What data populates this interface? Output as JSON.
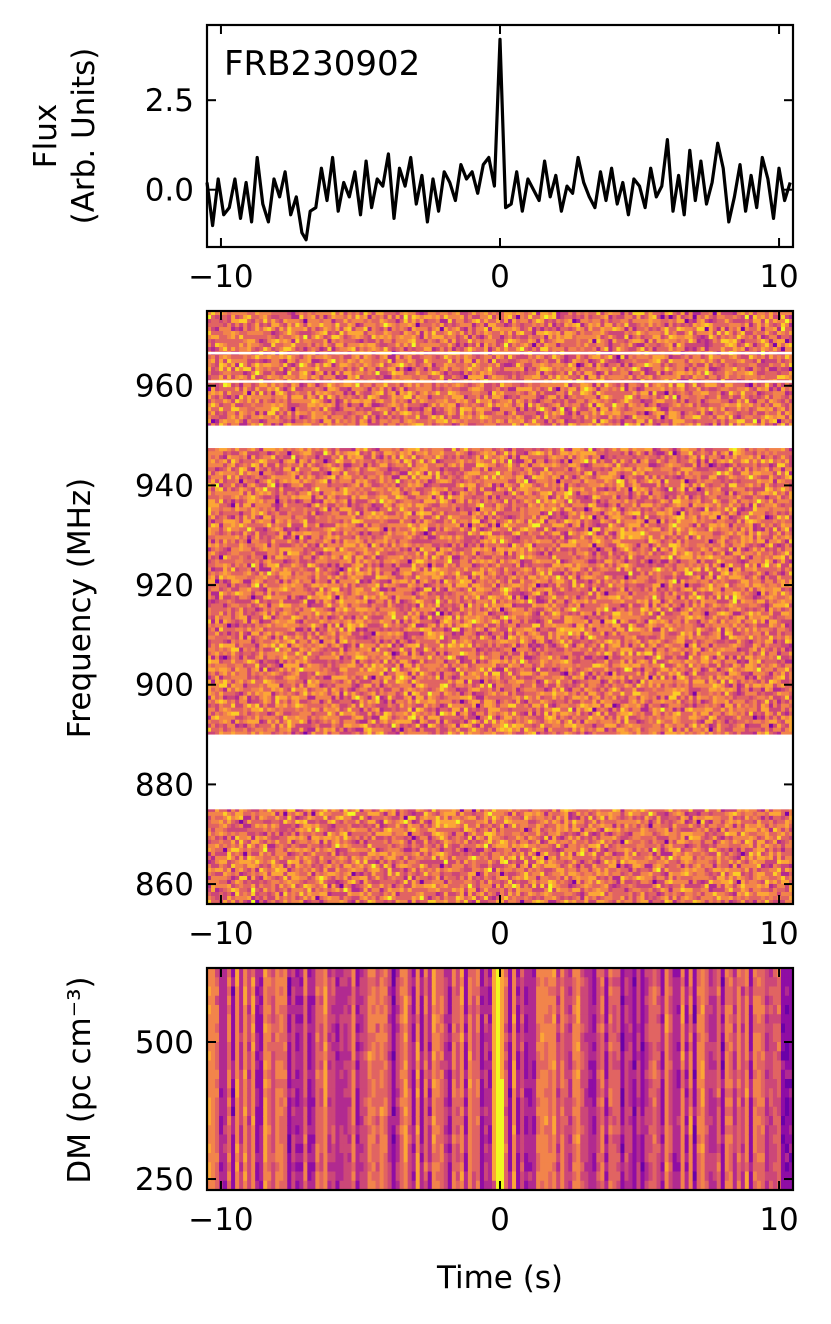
{
  "chart_data": [
    {
      "type": "line",
      "annotation": "FRB230902",
      "ylabel_lines": [
        "Flux",
        "(Arb. Units)"
      ],
      "xlabel": "",
      "xlim": [
        -10.5,
        10.5
      ],
      "ylim": [
        -1.6,
        4.6
      ],
      "xticks": [
        -10,
        0,
        10
      ],
      "xtick_labels": [
        "−10",
        "0",
        "10"
      ],
      "yticks": [
        0.0,
        2.5
      ],
      "ytick_labels": [
        "0.0",
        "2.5"
      ],
      "series": [
        {
          "color": "#000000",
          "x": [
            -10.5,
            -10.3,
            -10.1,
            -9.9,
            -9.7,
            -9.5,
            -9.3,
            -9.1,
            -8.9,
            -8.7,
            -8.5,
            -8.3,
            -8.1,
            -7.9,
            -7.7,
            -7.5,
            -7.3,
            -7.1,
            -6.95,
            -6.8,
            -6.6,
            -6.4,
            -6.2,
            -6.0,
            -5.8,
            -5.6,
            -5.4,
            -5.2,
            -5.0,
            -4.8,
            -4.6,
            -4.4,
            -4.2,
            -4.0,
            -3.8,
            -3.6,
            -3.4,
            -3.2,
            -3.0,
            -2.8,
            -2.6,
            -2.4,
            -2.2,
            -2.0,
            -1.8,
            -1.6,
            -1.4,
            -1.2,
            -1.0,
            -0.8,
            -0.6,
            -0.4,
            -0.2,
            0.0,
            0.2,
            0.4,
            0.6,
            0.8,
            1.0,
            1.2,
            1.4,
            1.6,
            1.8,
            2.0,
            2.2,
            2.4,
            2.6,
            2.8,
            3.0,
            3.2,
            3.4,
            3.6,
            3.8,
            4.0,
            4.2,
            4.4,
            4.6,
            4.8,
            5.0,
            5.2,
            5.4,
            5.6,
            5.8,
            6.0,
            6.2,
            6.4,
            6.6,
            6.8,
            7.0,
            7.2,
            7.4,
            7.6,
            7.8,
            8.0,
            8.2,
            8.4,
            8.6,
            8.8,
            9.0,
            9.2,
            9.4,
            9.6,
            9.8,
            10.0,
            10.2,
            10.4
          ],
          "y": [
            0.2,
            -1.0,
            0.3,
            -0.7,
            -0.5,
            0.3,
            -0.8,
            0.2,
            -0.9,
            0.9,
            -0.4,
            -0.9,
            0.3,
            -0.2,
            0.5,
            -0.7,
            -0.2,
            -1.2,
            -1.4,
            -0.6,
            -0.5,
            0.6,
            -0.3,
            0.9,
            -0.6,
            0.2,
            -0.2,
            0.5,
            -0.7,
            0.8,
            -0.5,
            0.3,
            0.1,
            1.0,
            -0.8,
            0.6,
            0.1,
            0.9,
            -0.4,
            0.4,
            -0.9,
            0.3,
            -0.6,
            0.5,
            0.2,
            -0.3,
            0.7,
            0.3,
            0.5,
            -0.1,
            0.7,
            0.9,
            0.1,
            4.2,
            -0.5,
            -0.4,
            0.5,
            -0.6,
            0.3,
            0.0,
            -0.3,
            0.8,
            -0.2,
            0.4,
            -0.6,
            0.1,
            -0.1,
            0.9,
            0.2,
            -0.2,
            -0.5,
            0.5,
            -0.3,
            0.6,
            -0.4,
            0.2,
            -0.7,
            0.3,
            0.1,
            -0.5,
            0.6,
            -0.2,
            0.1,
            1.4,
            -0.6,
            0.4,
            -0.7,
            1.1,
            -0.3,
            0.8,
            -0.4,
            0.2,
            1.3,
            0.6,
            -0.9,
            -0.2,
            0.7,
            -0.6,
            0.4,
            -0.5,
            0.9,
            0.3,
            -0.8,
            0.6,
            -0.3,
            0.2
          ]
        }
      ]
    },
    {
      "type": "heatmap",
      "ylabel": "Frequency (MHz)",
      "xlabel": "",
      "colormap": "plasma",
      "xlim": [
        -10.5,
        10.5
      ],
      "ylim": [
        856,
        975
      ],
      "xticks": [
        -10,
        0,
        10
      ],
      "xtick_labels": [
        "−10",
        "0",
        "10"
      ],
      "yticks": [
        860,
        880,
        900,
        920,
        940,
        960
      ],
      "ytick_labels": [
        "860",
        "880",
        "900",
        "920",
        "940",
        "960"
      ],
      "masked_bands_mhz": [
        [
          875,
          890
        ],
        [
          947.5,
          952
        ],
        [
          966.3,
          966.8
        ],
        [
          960.6,
          961.1
        ]
      ],
      "colors": [
        "#7e03a8",
        "#b12a90",
        "#cc4778",
        "#e16462",
        "#f2844b",
        "#fca636",
        "#fcce25",
        "#f0f921"
      ]
    },
    {
      "type": "heatmap",
      "ylabel": "DM (pc cm⁻³)",
      "xlabel": "Time (s)",
      "colormap": "plasma",
      "xlim": [
        -10.5,
        10.5
      ],
      "ylim": [
        230,
        635
      ],
      "xticks": [
        -10,
        0,
        10
      ],
      "xtick_labels": [
        "−10",
        "0",
        "10"
      ],
      "yticks": [
        250,
        500
      ],
      "ytick_labels": [
        "250",
        "500"
      ],
      "peak_time_s": 0.0,
      "colors": [
        "#6a00a8",
        "#8f0da4",
        "#b12a90",
        "#cc4778",
        "#e16462",
        "#f2844b",
        "#fca636",
        "#fcce25",
        "#f0f921"
      ]
    }
  ]
}
